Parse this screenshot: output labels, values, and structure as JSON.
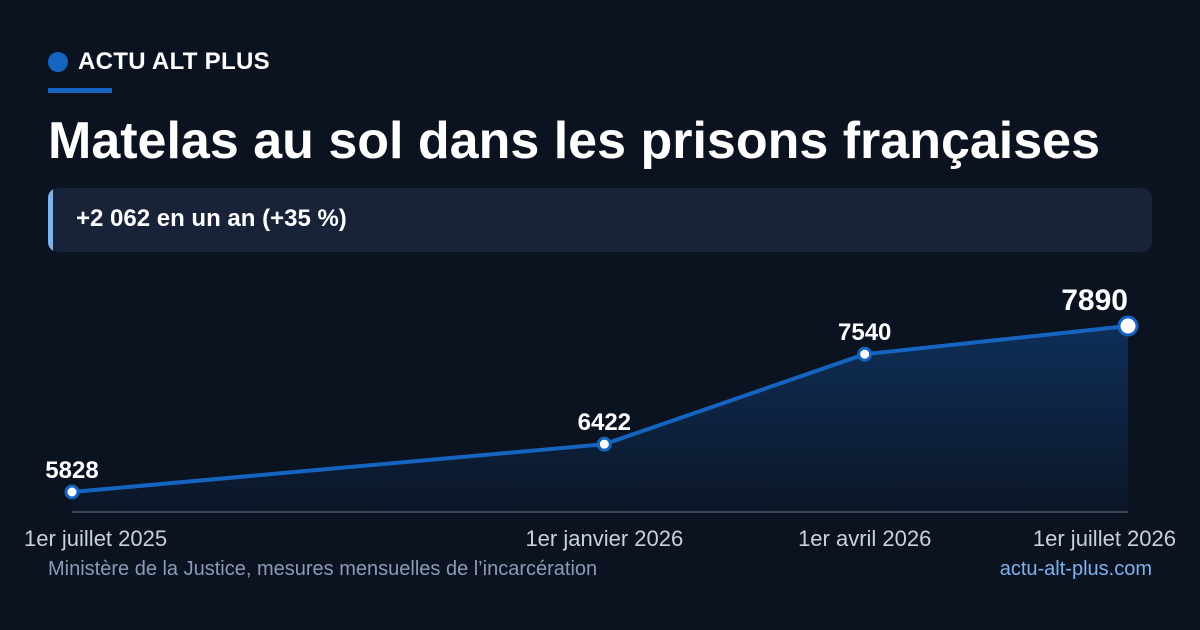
{
  "brand": {
    "name": "ACTU ALT PLUS",
    "accent_color": "#1565c0"
  },
  "title": "Matelas au sol dans les prisons françaises",
  "highlight": {
    "text": "+2 062 en un an (+35 %)"
  },
  "chart_data": {
    "type": "area",
    "x": [
      "1er juillet 2025",
      "1er janvier 2026",
      "1er avril 2026",
      "1er juillet 2026"
    ],
    "x_dates": [
      "2025-07-01",
      "2026-01-01",
      "2026-04-01",
      "2026-07-01"
    ],
    "values": [
      5828,
      6422,
      7540,
      7890
    ],
    "data_labels": [
      "5828",
      "6422",
      "7540",
      "7890"
    ],
    "line_color": "#1565c0",
    "grid": false,
    "legend": "none"
  },
  "footer": {
    "source": "Ministère de la Justice, mesures mensuelles de l’incarcération",
    "site": "actu-alt-plus.com"
  }
}
